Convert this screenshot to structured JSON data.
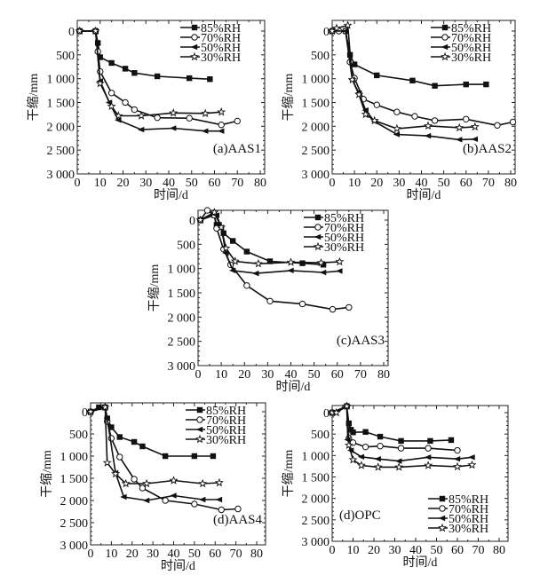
{
  "chart_data": [
    {
      "type": "line",
      "title": "(a)AAS1",
      "xlabel": "时间/d",
      "ylabel": "干缩/mm",
      "xlim": [
        0,
        80
      ],
      "ylim": [
        0,
        3000
      ],
      "y_inverted": true,
      "xticks": [
        "0",
        "10",
        "20",
        "30",
        "40",
        "50",
        "60",
        "70",
        "80"
      ],
      "yticks": [
        "0",
        "500",
        "1 000",
        "1 500",
        "2 000",
        "2 500",
        "3 000"
      ],
      "legend_position": "top-right",
      "series": [
        {
          "name": "85%RH",
          "marker": "square",
          "x": [
            1,
            8,
            9,
            10,
            15,
            21,
            25,
            35,
            49,
            58
          ],
          "y": [
            0,
            0,
            250,
            550,
            670,
            790,
            880,
            950,
            990,
            1010
          ]
        },
        {
          "name": "70%RH",
          "marker": "circle",
          "x": [
            1,
            8,
            9,
            10,
            15,
            21,
            25,
            35,
            49,
            63,
            70
          ],
          "y": [
            0,
            0,
            430,
            850,
            1300,
            1500,
            1650,
            1820,
            1830,
            1970,
            1890
          ]
        },
        {
          "name": "50%RH",
          "marker": "triangle-left",
          "x": [
            1,
            8,
            10,
            14,
            18,
            28,
            42,
            56,
            63
          ],
          "y": [
            0,
            0,
            1050,
            1500,
            1870,
            2070,
            2040,
            2100,
            2100
          ]
        },
        {
          "name": "30%RH",
          "marker": "star",
          "x": [
            1,
            8,
            10,
            15,
            18,
            28,
            42,
            56,
            63
          ],
          "y": [
            0,
            0,
            1100,
            1580,
            1780,
            1780,
            1720,
            1730,
            1700
          ]
        }
      ]
    },
    {
      "type": "line",
      "title": "(b)AAS2",
      "xlabel": "时间/d",
      "ylabel": "干缩/mm",
      "xlim": [
        0,
        80
      ],
      "ylim": [
        0,
        3000
      ],
      "y_inverted": true,
      "xticks": [
        "0",
        "10",
        "20",
        "30",
        "40",
        "50",
        "60",
        "70",
        "80"
      ],
      "yticks": [
        "0",
        "500",
        "1 000",
        "1 500",
        "2 000",
        "2 500",
        "3 000"
      ],
      "legend_position": "top-right",
      "series": [
        {
          "name": "85%RH",
          "marker": "square",
          "x": [
            0,
            6,
            8,
            10,
            20,
            36,
            46,
            60,
            69
          ],
          "y": [
            0,
            0,
            500,
            700,
            930,
            1040,
            1150,
            1120,
            1120
          ]
        },
        {
          "name": "70%RH",
          "marker": "circle",
          "x": [
            0,
            3,
            6,
            8,
            10,
            14,
            20,
            29,
            37,
            46,
            60,
            74,
            81
          ],
          "y": [
            0,
            0,
            0,
            650,
            990,
            1430,
            1550,
            1700,
            1790,
            1880,
            1850,
            1980,
            1910
          ]
        },
        {
          "name": "50%RH",
          "marker": "triangle-left",
          "x": [
            0,
            6,
            9,
            12,
            15,
            19,
            29,
            43,
            57,
            64
          ],
          "y": [
            0,
            0,
            1020,
            1300,
            1660,
            1900,
            2170,
            2200,
            2280,
            2270
          ]
        },
        {
          "name": "30%RH",
          "marker": "star",
          "x": [
            0,
            2,
            7,
            9,
            12,
            15,
            19,
            29,
            43,
            57,
            64
          ],
          "y": [
            0,
            -60,
            -120,
            1020,
            1330,
            1750,
            1880,
            2050,
            1990,
            2030,
            2010
          ]
        }
      ]
    },
    {
      "type": "line",
      "title": "(c)AAS3",
      "xlabel": "时间/d",
      "ylabel": "干缩/mm",
      "xlim": [
        0,
        80
      ],
      "ylim": [
        0,
        3000
      ],
      "y_inverted": true,
      "xticks": [
        "0",
        "10",
        "20",
        "30",
        "40",
        "50",
        "60",
        "70",
        "80"
      ],
      "yticks": [
        "0",
        "500",
        "1 000",
        "1 500",
        "2 000",
        "2 500",
        "3 000"
      ],
      "legend_position": "top-right",
      "series": [
        {
          "name": "85%RH",
          "marker": "square",
          "x": [
            1,
            7,
            8,
            9,
            11,
            15,
            21,
            31,
            45,
            54
          ],
          "y": [
            0,
            -100,
            100,
            100,
            270,
            430,
            650,
            850,
            890,
            920
          ]
        },
        {
          "name": "70%RH",
          "marker": "circle",
          "x": [
            1,
            4,
            7,
            8,
            11,
            14,
            21,
            31,
            45,
            58,
            65
          ],
          "y": [
            0,
            -200,
            -100,
            170,
            600,
            920,
            1350,
            1670,
            1730,
            1840,
            1800
          ]
        },
        {
          "name": "50%RH",
          "marker": "triangle-left",
          "x": [
            1,
            7,
            8,
            10,
            12,
            15,
            25,
            40,
            54,
            61
          ],
          "y": [
            0,
            -130,
            -100,
            150,
            680,
            1040,
            1100,
            1040,
            1080,
            1050
          ]
        },
        {
          "name": "30%RH",
          "marker": "star",
          "x": [
            1,
            7,
            10,
            12,
            16,
            26,
            40,
            53,
            61
          ],
          "y": [
            0,
            -160,
            150,
            580,
            850,
            900,
            870,
            880,
            860
          ]
        }
      ]
    },
    {
      "type": "line",
      "title": "(d)AAS4",
      "xlabel": "时间/d",
      "ylabel": "干缩/mm",
      "xlim": [
        0,
        80
      ],
      "ylim": [
        0,
        3000
      ],
      "y_inverted": true,
      "xticks": [
        "0",
        "10",
        "20",
        "30",
        "40",
        "50",
        "60",
        "70",
        "80"
      ],
      "yticks": [
        "0",
        "500",
        "1 000",
        "1 500",
        "2 000",
        "2 500",
        "3 000"
      ],
      "legend_position": "top-right",
      "series": [
        {
          "name": "85%RH",
          "marker": "square",
          "x": [
            0,
            4,
            7,
            8,
            10,
            14,
            21,
            25,
            36,
            50,
            59
          ],
          "y": [
            0,
            -100,
            -100,
            150,
            350,
            570,
            680,
            780,
            1000,
            1000,
            1000
          ]
        },
        {
          "name": "70%RH",
          "marker": "circle",
          "x": [
            0,
            7,
            8,
            10,
            14,
            21,
            25,
            36,
            50,
            63,
            71
          ],
          "y": [
            0,
            -100,
            220,
            600,
            1020,
            1520,
            1720,
            2000,
            2080,
            2210,
            2190
          ]
        },
        {
          "name": "50%RH",
          "marker": "triangle-left",
          "x": [
            0,
            7,
            8,
            12,
            16,
            27,
            40,
            54,
            62
          ],
          "y": [
            0,
            -100,
            150,
            1380,
            1920,
            2000,
            1890,
            1980,
            1980
          ]
        },
        {
          "name": "30%RH",
          "marker": "star",
          "x": [
            0,
            7,
            8,
            12,
            17,
            27,
            40,
            54,
            62
          ],
          "y": [
            0,
            -100,
            1150,
            1400,
            1620,
            1620,
            1550,
            1620,
            1600
          ]
        }
      ]
    },
    {
      "type": "line",
      "title": "(d)OPC",
      "xlabel": "时间/d",
      "ylabel": "干缩/mm",
      "xlim": [
        0,
        80
      ],
      "ylim": [
        0,
        3000
      ],
      "y_inverted": true,
      "xticks": [
        "0",
        "10",
        "20",
        "30",
        "40",
        "50",
        "60",
        "70",
        "80"
      ],
      "yticks": [
        "0",
        "500",
        "1 000",
        "1 500",
        "2 000",
        "2 500",
        "3 000"
      ],
      "legend_position": "bottom-right",
      "series": [
        {
          "name": "85%RH",
          "marker": "square",
          "x": [
            0,
            7,
            8,
            9,
            10,
            16,
            23,
            33,
            47,
            57
          ],
          "y": [
            0,
            -150,
            250,
            400,
            460,
            450,
            560,
            660,
            660,
            640
          ]
        },
        {
          "name": "70%RH",
          "marker": "circle",
          "x": [
            0,
            7,
            8,
            10,
            16,
            23,
            33,
            46,
            60
          ],
          "y": [
            0,
            -150,
            600,
            700,
            800,
            780,
            830,
            830,
            880
          ]
        },
        {
          "name": "50%RH",
          "marker": "triangle-left",
          "x": [
            0,
            7,
            7.5,
            9,
            14,
            22,
            32,
            46,
            60,
            67
          ],
          "y": [
            0,
            -150,
            630,
            880,
            1030,
            1080,
            1130,
            1040,
            1080,
            1040
          ]
        },
        {
          "name": "30%RH",
          "marker": "star",
          "x": [
            0,
            2,
            7,
            8,
            10,
            14,
            22,
            32,
            46,
            60,
            67
          ],
          "y": [
            0,
            0,
            -150,
            760,
            1100,
            1230,
            1270,
            1270,
            1230,
            1260,
            1220
          ]
        }
      ]
    }
  ]
}
